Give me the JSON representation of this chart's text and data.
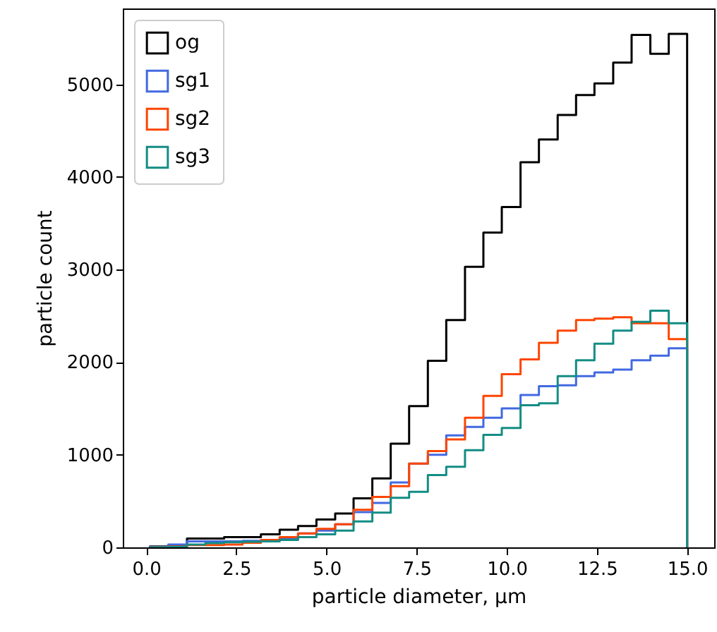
{
  "chart_data": {
    "type": "histogram",
    "xlabel": "particle diameter, μm",
    "ylabel": "particle count",
    "bins": [
      0.1,
      0.61,
      1.13,
      1.64,
      2.16,
      2.67,
      3.18,
      3.7,
      4.21,
      4.72,
      5.24,
      5.75,
      6.27,
      6.78,
      7.29,
      7.81,
      8.32,
      8.84,
      9.35,
      9.86,
      10.38,
      10.89,
      11.41,
      11.92,
      12.43,
      12.95,
      13.46,
      13.98,
      14.49,
      15.0
    ],
    "series": [
      {
        "name": "og",
        "color": "#000000",
        "values": [
          10,
          20,
          95,
          95,
          110,
          110,
          140,
          190,
          230,
          300,
          365,
          530,
          745,
          1120,
          1525,
          2015,
          2455,
          3030,
          3400,
          3675,
          4160,
          4405,
          4670,
          4885,
          5010,
          5235,
          5535,
          5330,
          5545
        ]
      },
      {
        "name": "sg1",
        "color": "#4169e1",
        "values": [
          5,
          30,
          65,
          65,
          65,
          70,
          75,
          95,
          150,
          180,
          250,
          380,
          480,
          700,
          905,
          1000,
          1210,
          1300,
          1400,
          1500,
          1645,
          1740,
          1750,
          1850,
          1890,
          1920,
          2020,
          2070,
          2150
        ]
      },
      {
        "name": "sg2",
        "color": "#ff4500",
        "values": [
          0,
          10,
          25,
          25,
          30,
          50,
          80,
          110,
          150,
          200,
          250,
          405,
          545,
          660,
          905,
          1040,
          1165,
          1400,
          1635,
          1870,
          2030,
          2210,
          2340,
          2455,
          2470,
          2485,
          2420,
          2420,
          2250
        ]
      },
      {
        "name": "sg3",
        "color": "#138d84",
        "values": [
          0,
          5,
          30,
          45,
          55,
          60,
          65,
          80,
          110,
          140,
          180,
          280,
          375,
          535,
          600,
          780,
          870,
          1050,
          1215,
          1290,
          1535,
          1555,
          1850,
          2020,
          2200,
          2340,
          2435,
          2555,
          2420
        ]
      }
    ],
    "xlim": [
      -0.65,
      15.75
    ],
    "ylim": [
      0,
      5820
    ],
    "xticks": [
      {
        "value": 0,
        "label": "0.0"
      },
      {
        "value": 2.5,
        "label": "2.5"
      },
      {
        "value": 5,
        "label": "5.0"
      },
      {
        "value": 7.5,
        "label": "7.5"
      },
      {
        "value": 10,
        "label": "10.0"
      },
      {
        "value": 12.5,
        "label": "12.5"
      },
      {
        "value": 15,
        "label": "15.0"
      }
    ],
    "yticks": [
      0,
      1000,
      2000,
      3000,
      4000,
      5000
    ],
    "legend": "top left",
    "grid": false
  }
}
